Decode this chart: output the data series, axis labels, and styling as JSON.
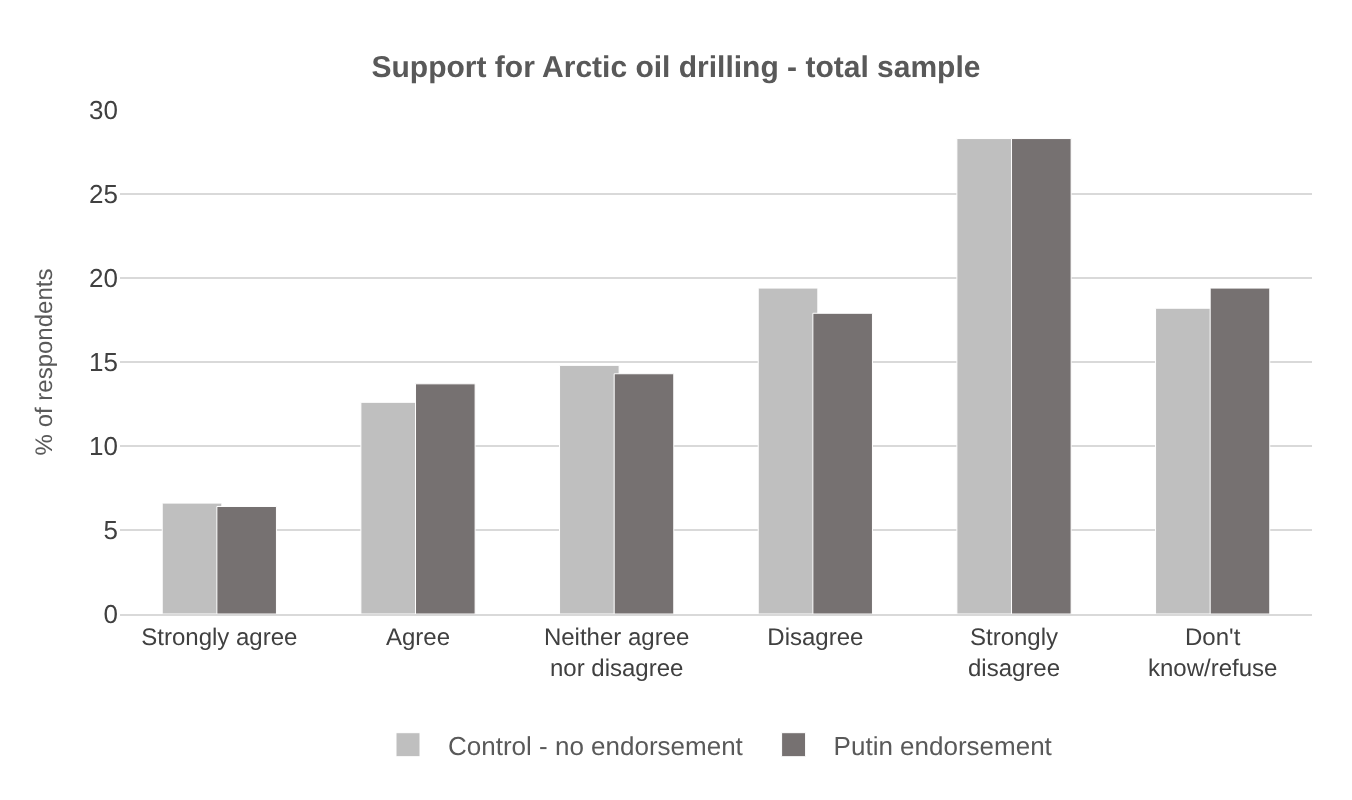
{
  "chart_data": {
    "type": "bar",
    "title": "Support for Arctic oil drilling - total sample",
    "ylabel": "% of respondents",
    "categories": [
      "Strongly agree",
      "Agree",
      "Neither agree\nnor disagree",
      "Disagree",
      "Strongly\ndisagree",
      "Don't\nknow/refuse"
    ],
    "series": [
      {
        "name": "Control - no endorsement",
        "color": "#bfbfbf",
        "values": [
          6.6,
          12.6,
          14.8,
          19.4,
          28.3,
          18.2
        ]
      },
      {
        "name": "Putin endorsement",
        "color": "#767171",
        "values": [
          6.4,
          13.7,
          14.3,
          17.9,
          28.3,
          19.4
        ]
      }
    ],
    "ylim": [
      0,
      30
    ],
    "yticks": [
      0,
      5,
      10,
      15,
      20,
      25,
      30
    ],
    "grid": "y",
    "legend": "bottom"
  }
}
